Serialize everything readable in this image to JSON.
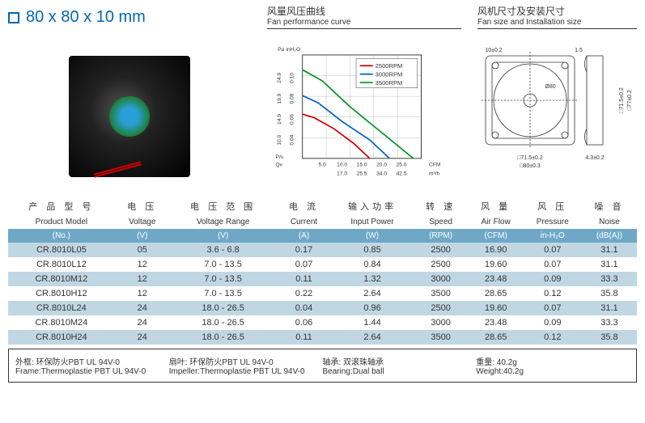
{
  "title": "80 x 80 x 10 mm",
  "sections": {
    "curve": {
      "cn": "风量风压曲线",
      "en": "Fan performance curve"
    },
    "dims": {
      "cn": "风机尺寸及安装尺寸",
      "en": "Fan size and Installation size"
    }
  },
  "chart": {
    "type": "line",
    "x_axis": {
      "label": "Qv",
      "unit_top": "CFM",
      "unit_bot": "m³/h",
      "ticks_cfm": [
        "5.0",
        "10.0",
        "15.0",
        "20.0",
        "25.0"
      ],
      "ticks_m3h": [
        "",
        "17.0",
        "25.5",
        "34.0",
        "42.5"
      ]
    },
    "y_axis": {
      "label": "P/s",
      "unit_left": "Pa",
      "unit_right": "inH₂O",
      "ticks_pa": [
        "10.0",
        "14.9",
        "19.9",
        "24.9"
      ],
      "ticks_in": [
        "0.04",
        "0.06",
        "0.08",
        "0.10"
      ]
    },
    "series": [
      {
        "name": "2500RPM",
        "color": "#d00000",
        "points": [
          [
            0,
            12
          ],
          [
            3,
            11
          ],
          [
            8,
            8
          ],
          [
            13,
            4
          ],
          [
            17,
            0
          ]
        ]
      },
      {
        "name": "3000RPM",
        "color": "#0060c0",
        "points": [
          [
            0,
            17
          ],
          [
            4,
            15
          ],
          [
            10,
            10
          ],
          [
            17,
            5
          ],
          [
            22,
            0
          ]
        ]
      },
      {
        "name": "3500RPM",
        "color": "#009020",
        "points": [
          [
            0,
            24
          ],
          [
            5,
            21
          ],
          [
            12,
            14
          ],
          [
            20,
            7
          ],
          [
            28,
            0
          ]
        ]
      }
    ],
    "grid_color": "#888",
    "bg": "#ffffff",
    "xlim": [
      0,
      30
    ],
    "ylim": [
      0,
      28
    ]
  },
  "dims_drawing": {
    "outer": "80±0.3",
    "hole_pitch": "71.5±0.2",
    "hole_dia": "4.3±0.2",
    "depth": "10±0.2",
    "fan_circle": "Ø80",
    "wire": "1.5",
    "angle": "77±0.2"
  },
  "table": {
    "headers_cn": [
      "产 品 型 号",
      "电 压",
      "电 压 范 围",
      "电 流",
      "输入功率",
      "转 速",
      "风 量",
      "风 压",
      "噪 音"
    ],
    "headers_en": [
      "Product Model",
      "Voltage",
      "Voltage Range",
      "Current",
      "Input Power",
      "Speed",
      "Air Flow",
      "Pressure",
      "Noise"
    ],
    "units": [
      "(No.)",
      "(V)",
      "(V)",
      "(A)",
      "(W)",
      "(RPM)",
      "(CFM)",
      "in-H₂O",
      "(dB(A))"
    ],
    "rows": [
      [
        "CR.8010L05",
        "05",
        "3.6 - 6.8",
        "0.17",
        "0.85",
        "2500",
        "16.90",
        "0.07",
        "31.1"
      ],
      [
        "CR.8010L12",
        "12",
        "7.0 - 13.5",
        "0.07",
        "0.84",
        "2500",
        "19.60",
        "0.07",
        "31.1"
      ],
      [
        "CR.8010M12",
        "12",
        "7.0 - 13.5",
        "0.11",
        "1.32",
        "3000",
        "23.48",
        "0.09",
        "33.3"
      ],
      [
        "CR.8010H12",
        "12",
        "7.0 - 13.5",
        "0.22",
        "2.64",
        "3500",
        "28.65",
        "0.12",
        "35.8"
      ],
      [
        "CR.8010L24",
        "24",
        "18.0 - 26.5",
        "0.04",
        "0.96",
        "2500",
        "19.60",
        "0.07",
        "31.1"
      ],
      [
        "CR.8010M24",
        "24",
        "18.0 - 26.5",
        "0.06",
        "1.44",
        "3000",
        "23.48",
        "0.09",
        "33.3"
      ],
      [
        "CR.8010H24",
        "24",
        "18.0 - 26.5",
        "0.11",
        "2.64",
        "3500",
        "28.65",
        "0.12",
        "35.8"
      ]
    ]
  },
  "footer": {
    "frame": {
      "cn": "外框: 环保防火PBT UL 94V-0",
      "en": "Frame:Thermoplastie PBT UL 94V-0"
    },
    "impeller": {
      "cn": "扇叶: 环保防火PBT UL 94V-0",
      "en": "Impeller:Thermoplastie PBT UL 94V-0"
    },
    "bearing": {
      "cn": "轴承: 双滚珠轴承",
      "en": "Bearing:Dual ball"
    },
    "weight": {
      "cn": "重量: 40.2g",
      "en": "Weight:40.2g"
    }
  },
  "colors": {
    "header_band": "#6fa8c7",
    "row_odd": "#c0d7e3",
    "title": "#0068b0"
  }
}
